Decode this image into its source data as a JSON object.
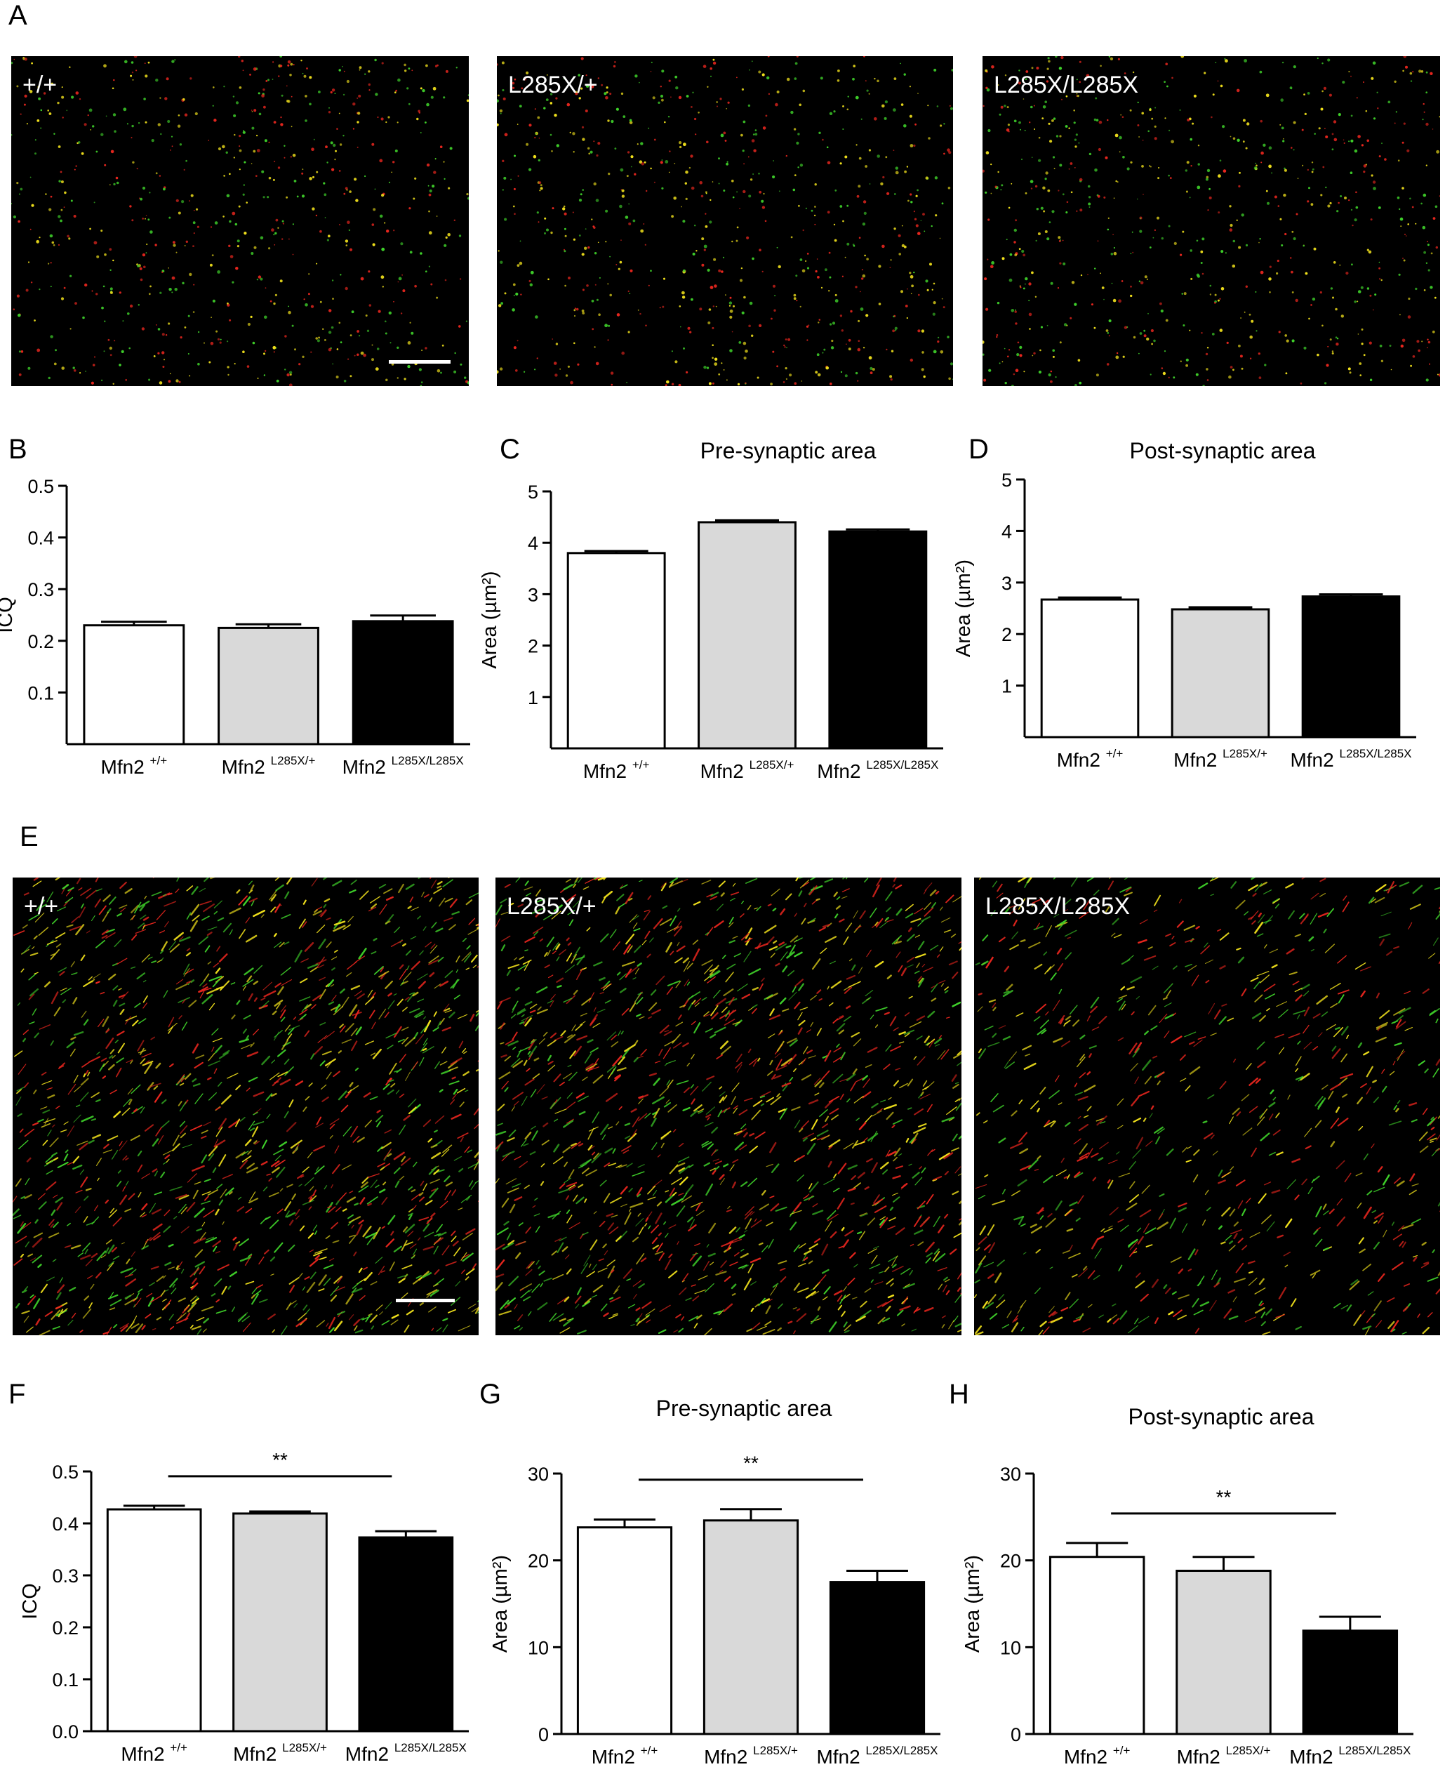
{
  "panels": {
    "A": "A",
    "B": "B",
    "C": "C",
    "D": "D",
    "E": "E",
    "F": "F",
    "G": "G",
    "H": "H"
  },
  "micrographs_top": [
    {
      "label": "+/+"
    },
    {
      "label": "L285X/+"
    },
    {
      "label": "L285X/L285X"
    }
  ],
  "micrographs_bottom": [
    {
      "label": "+/+"
    },
    {
      "label": "L285X/+"
    },
    {
      "label": "L285X/L285X"
    }
  ],
  "colors": {
    "bar_wt": "#ffffff",
    "bar_het": "#d9d9d9",
    "bar_hom": "#000000",
    "punctum_green": "#3fd12a",
    "punctum_red": "#e8261e",
    "punctum_yellow": "#f2e21c"
  },
  "chart_data": [
    {
      "id": "B",
      "type": "bar",
      "title": "",
      "ylabel": "ICQ",
      "ylim": [
        0,
        0.5
      ],
      "yticks": [
        "0.1",
        "0.2",
        "0.3",
        "0.4",
        "0.5"
      ],
      "categories": [
        {
          "base": "Mfn2",
          "sup": "+/+"
        },
        {
          "base": "Mfn2",
          "sup": "L285X/+"
        },
        {
          "base": "Mfn2",
          "sup": "L285X/L285X"
        }
      ],
      "values": [
        0.23,
        0.225,
        0.238
      ],
      "errors": [
        0.007,
        0.007,
        0.011
      ],
      "significance": ""
    },
    {
      "id": "C",
      "type": "bar",
      "title": "Pre-synaptic area",
      "ylabel": "Area (µm²)",
      "ylim": [
        0,
        5
      ],
      "yticks": [
        "1",
        "2",
        "3",
        "4",
        "5"
      ],
      "categories": [
        {
          "base": "Mfn2",
          "sup": "+/+"
        },
        {
          "base": "Mfn2",
          "sup": "L285X/+"
        },
        {
          "base": "Mfn2",
          "sup": "L285X/L285X"
        }
      ],
      "values": [
        3.8,
        4.4,
        4.22
      ],
      "errors": [
        0.04,
        0.04,
        0.04
      ],
      "significance": ""
    },
    {
      "id": "D",
      "type": "bar",
      "title": "Post-synaptic area",
      "ylabel": "Area (µm²)",
      "ylim": [
        0,
        5
      ],
      "yticks": [
        "1",
        "2",
        "3",
        "4",
        "5"
      ],
      "categories": [
        {
          "base": "Mfn2",
          "sup": "+/+"
        },
        {
          "base": "Mfn2",
          "sup": "L285X/+"
        },
        {
          "base": "Mfn2",
          "sup": "L285X/L285X"
        }
      ],
      "values": [
        2.67,
        2.48,
        2.73
      ],
      "errors": [
        0.04,
        0.04,
        0.04
      ],
      "significance": ""
    },
    {
      "id": "F",
      "type": "bar",
      "title": "",
      "ylabel": "ICQ",
      "ylim": [
        0,
        0.5
      ],
      "yticks": [
        "0.0",
        "0.1",
        "0.2",
        "0.3",
        "0.4",
        "0.5"
      ],
      "categories": [
        {
          "base": "Mfn2",
          "sup": "+/+"
        },
        {
          "base": "Mfn2",
          "sup": "L285X/+"
        },
        {
          "base": "Mfn2",
          "sup": "L285X/L285X"
        }
      ],
      "values": [
        0.427,
        0.419,
        0.373
      ],
      "errors": [
        0.007,
        0.004,
        0.012
      ],
      "significance": "**"
    },
    {
      "id": "G",
      "type": "bar",
      "title": "Pre-synaptic area",
      "ylabel": "Area (µm²)",
      "ylim": [
        0,
        30
      ],
      "yticks": [
        "0",
        "10",
        "20",
        "30"
      ],
      "categories": [
        {
          "base": "Mfn2",
          "sup": "+/+"
        },
        {
          "base": "Mfn2",
          "sup": "L285X/+"
        },
        {
          "base": "Mfn2",
          "sup": "L285X/L285X"
        }
      ],
      "values": [
        23.8,
        24.6,
        17.5
      ],
      "errors": [
        0.9,
        1.3,
        1.3
      ],
      "significance": "**"
    },
    {
      "id": "H",
      "type": "bar",
      "title": "Post-synaptic area",
      "ylabel": "Area (µm²)",
      "ylim": [
        0,
        30
      ],
      "yticks": [
        "0",
        "10",
        "20",
        "30"
      ],
      "categories": [
        {
          "base": "Mfn2",
          "sup": "+/+"
        },
        {
          "base": "Mfn2",
          "sup": "L285X/+"
        },
        {
          "base": "Mfn2",
          "sup": "L285X/L285X"
        }
      ],
      "values": [
        20.4,
        18.8,
        11.9
      ],
      "errors": [
        1.6,
        1.6,
        1.6
      ],
      "significance": "**"
    }
  ]
}
